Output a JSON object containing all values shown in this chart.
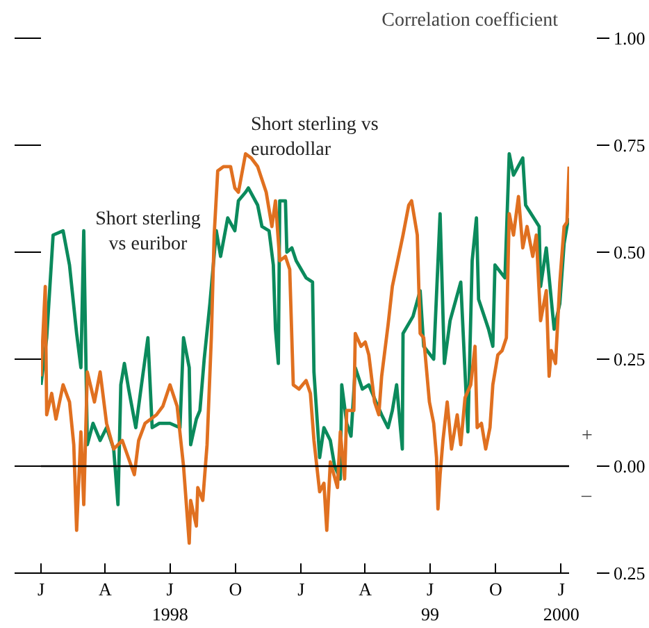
{
  "chart_data": {
    "type": "line",
    "ylabel": "Correlation coefficient",
    "xlim": [
      "1998-01-01",
      "2000-01-12"
    ],
    "xticks": [
      {
        "value": "1998-01-01",
        "label": "J"
      },
      {
        "value": "1998-04-01",
        "label": "A"
      },
      {
        "value": "1998-07-01",
        "label": "J\n1998"
      },
      {
        "value": "1998-10-01",
        "label": "O"
      },
      {
        "value": "1999-01-01",
        "label": "J"
      },
      {
        "value": "1999-04-01",
        "label": "A"
      },
      {
        "value": "1999-07-01",
        "label": "J\n99"
      },
      {
        "value": "1999-10-01",
        "label": "O"
      },
      {
        "value": "2000-01-01",
        "label": "J\n2000"
      }
    ],
    "ylim": [
      -0.25,
      1.0
    ],
    "yticks": [
      {
        "value": -0.25,
        "label": "0.25"
      },
      {
        "value": 0,
        "label": "0.00"
      },
      {
        "value": 0.25,
        "label": "0.25"
      },
      {
        "value": 0.5,
        "label": "0.50"
      },
      {
        "value": 0.75,
        "label": "0.75"
      },
      {
        "value": 1.0,
        "label": "1.00"
      }
    ],
    "line_style": "solid",
    "ref_lines": [
      {
        "axis": "y",
        "value": 0,
        "color": "#000000"
      }
    ],
    "annotations": [
      "+",
      "–"
    ],
    "series": [
      {
        "name": "Short sterling\nvs euribor",
        "color": "#0b8a5c",
        "x": [
          "1998-01-01",
          "1998-01-09",
          "1998-01-18",
          "1998-02-01",
          "1998-02-10",
          "1998-02-20",
          "1998-02-26",
          "1998-03-02",
          "1998-03-07",
          "1998-03-15",
          "1998-03-25",
          "1998-04-03",
          "1998-04-13",
          "1998-04-19",
          "1998-04-23",
          "1998-04-28",
          "1998-05-04",
          "1998-05-14",
          "1998-05-22",
          "1998-05-31",
          "1998-06-06",
          "1998-06-16",
          "1998-07-01",
          "1998-07-15",
          "1998-07-20",
          "1998-07-28",
          "1998-07-30",
          "1998-08-07",
          "1998-08-12",
          "1998-08-18",
          "1998-08-26",
          "1998-09-04",
          "1998-09-10",
          "1998-09-20",
          "1998-09-30",
          "1998-10-05",
          "1998-10-15",
          "1998-10-19",
          "1998-11-01",
          "1998-11-07",
          "1998-11-17",
          "1998-11-23",
          "1998-11-26",
          "1998-11-30",
          "1998-12-02",
          "1998-12-10",
          "1998-12-12",
          "1998-12-19",
          "1998-12-25",
          "1999-01-08",
          "1999-01-17",
          "1999-01-19",
          "1999-01-27",
          "1999-02-02",
          "1999-02-11",
          "1999-02-17",
          "1999-02-25",
          "1999-02-27",
          "1999-03-06",
          "1999-03-12",
          "1999-03-18",
          "1999-03-28",
          "1999-04-06",
          "1999-04-16",
          "1999-04-24",
          "1999-05-03",
          "1999-05-09",
          "1999-05-15",
          "1999-05-23",
          "1999-05-24",
          "1999-06-07",
          "1999-06-17",
          "1999-06-22",
          "1999-07-06",
          "1999-07-15",
          "1999-07-21",
          "1999-07-29",
          "1999-08-13",
          "1999-08-23",
          "1999-08-29",
          "1999-09-04",
          "1999-09-07",
          "1999-09-21",
          "1999-09-27",
          "1999-09-30",
          "1999-10-14",
          "1999-10-20",
          "1999-10-26",
          "1999-11-08",
          "1999-11-12",
          "1999-12-01",
          "1999-12-03",
          "1999-12-11",
          "1999-12-22",
          "1999-12-30",
          "2000-01-05",
          "2000-01-11"
        ],
        "values": [
          0.19,
          0.3,
          0.54,
          0.55,
          0.47,
          0.31,
          0.23,
          0.55,
          0.05,
          0.1,
          0.06,
          0.09,
          0.04,
          -0.09,
          0.19,
          0.24,
          0.18,
          0.09,
          0.19,
          0.3,
          0.09,
          0.1,
          0.1,
          0.09,
          0.3,
          0.23,
          0.05,
          0.11,
          0.13,
          0.25,
          0.38,
          0.55,
          0.49,
          0.58,
          0.55,
          0.62,
          0.64,
          0.65,
          0.61,
          0.56,
          0.55,
          0.47,
          0.32,
          0.24,
          0.62,
          0.62,
          0.5,
          0.51,
          0.48,
          0.44,
          0.43,
          0.22,
          0.02,
          0.09,
          0.06,
          0.0,
          -0.03,
          0.19,
          0.1,
          0.07,
          0.23,
          0.18,
          0.19,
          0.15,
          0.12,
          0.09,
          0.13,
          0.19,
          0.04,
          0.31,
          0.35,
          0.41,
          0.28,
          0.25,
          0.59,
          0.24,
          0.34,
          0.43,
          0.08,
          0.48,
          0.58,
          0.39,
          0.32,
          0.28,
          0.47,
          0.44,
          0.73,
          0.68,
          0.72,
          0.61,
          0.56,
          0.42,
          0.51,
          0.32,
          0.38,
          0.52,
          0.58
        ]
      },
      {
        "name": "Short sterling vs\neurodollar",
        "color": "#e07020",
        "x": [
          "1998-01-01",
          "1998-01-07",
          "1998-01-09",
          "1998-01-16",
          "1998-01-22",
          "1998-02-01",
          "1998-02-10",
          "1998-02-16",
          "1998-02-20",
          "1998-02-26",
          "1998-03-02",
          "1998-03-07",
          "1998-03-17",
          "1998-03-25",
          "1998-04-03",
          "1998-04-13",
          "1998-04-25",
          "1998-05-12",
          "1998-05-18",
          "1998-05-27",
          "1998-06-12",
          "1998-06-21",
          "1998-07-01",
          "1998-07-11",
          "1998-07-20",
          "1998-07-28",
          "1998-07-30",
          "1998-08-07",
          "1998-08-09",
          "1998-08-16",
          "1998-08-22",
          "1998-08-28",
          "1998-09-01",
          "1998-09-06",
          "1998-09-14",
          "1998-09-24",
          "1998-09-30",
          "1998-10-05",
          "1998-10-15",
          "1998-10-23",
          "1998-11-01",
          "1998-11-07",
          "1998-11-13",
          "1998-11-21",
          "1998-11-26",
          "1998-12-02",
          "1998-12-10",
          "1998-12-16",
          "1998-12-21",
          "1998-12-29",
          "1999-01-08",
          "1999-01-14",
          "1999-01-19",
          "1999-01-27",
          "1999-02-02",
          "1999-02-06",
          "1999-02-11",
          "1999-02-21",
          "1999-02-25",
          "1999-03-03",
          "1999-03-06",
          "1999-03-16",
          "1999-03-18",
          "1999-03-26",
          "1999-04-01",
          "1999-04-06",
          "1999-04-14",
          "1999-04-20",
          "1999-04-24",
          "1999-05-03",
          "1999-05-09",
          "1999-05-19",
          "1999-05-24",
          "1999-06-01",
          "1999-06-05",
          "1999-06-13",
          "1999-06-17",
          "1999-06-22",
          "1999-06-30",
          "1999-07-06",
          "1999-07-10",
          "1999-07-12",
          "1999-07-15",
          "1999-07-19",
          "1999-07-25",
          "1999-07-31",
          "1999-08-08",
          "1999-08-13",
          "1999-08-19",
          "1999-08-27",
          "1999-09-02",
          "1999-09-05",
          "1999-09-11",
          "1999-09-17",
          "1999-09-23",
          "1999-09-27",
          "1999-10-04",
          "1999-10-10",
          "1999-10-16",
          "1999-10-20",
          "1999-10-26",
          "1999-11-02",
          "1999-11-08",
          "1999-11-14",
          "1999-11-22",
          "1999-11-27",
          "1999-12-03",
          "1999-12-11",
          "1999-12-15",
          "1999-12-18",
          "1999-12-24",
          "1999-12-30",
          "2000-01-05",
          "2000-01-09",
          "2000-01-12"
        ],
        "values": [
          0.21,
          0.42,
          0.12,
          0.17,
          0.11,
          0.19,
          0.15,
          0.05,
          -0.15,
          0.08,
          -0.09,
          0.22,
          0.15,
          0.22,
          0.1,
          0.04,
          0.06,
          -0.02,
          0.06,
          0.1,
          0.12,
          0.14,
          0.19,
          0.14,
          0.0,
          -0.18,
          -0.08,
          -0.14,
          -0.05,
          -0.08,
          0.05,
          0.3,
          0.54,
          0.69,
          0.7,
          0.7,
          0.65,
          0.64,
          0.73,
          0.72,
          0.7,
          0.67,
          0.64,
          0.56,
          0.62,
          0.48,
          0.49,
          0.46,
          0.19,
          0.18,
          0.2,
          0.17,
          0.06,
          -0.06,
          -0.04,
          -0.15,
          0.01,
          -0.05,
          0.08,
          -0.03,
          0.13,
          0.13,
          0.31,
          0.28,
          0.29,
          0.26,
          0.15,
          0.12,
          0.21,
          0.33,
          0.42,
          0.5,
          0.54,
          0.61,
          0.62,
          0.54,
          0.31,
          0.3,
          0.15,
          0.1,
          0.02,
          -0.1,
          -0.02,
          0.06,
          0.15,
          0.04,
          0.12,
          0.05,
          0.16,
          0.19,
          0.28,
          0.09,
          0.1,
          0.04,
          0.09,
          0.19,
          0.26,
          0.27,
          0.3,
          0.59,
          0.54,
          0.63,
          0.51,
          0.56,
          0.49,
          0.54,
          0.34,
          0.41,
          0.21,
          0.27,
          0.24,
          0.43,
          0.56,
          0.57,
          0.7
        ]
      }
    ]
  }
}
